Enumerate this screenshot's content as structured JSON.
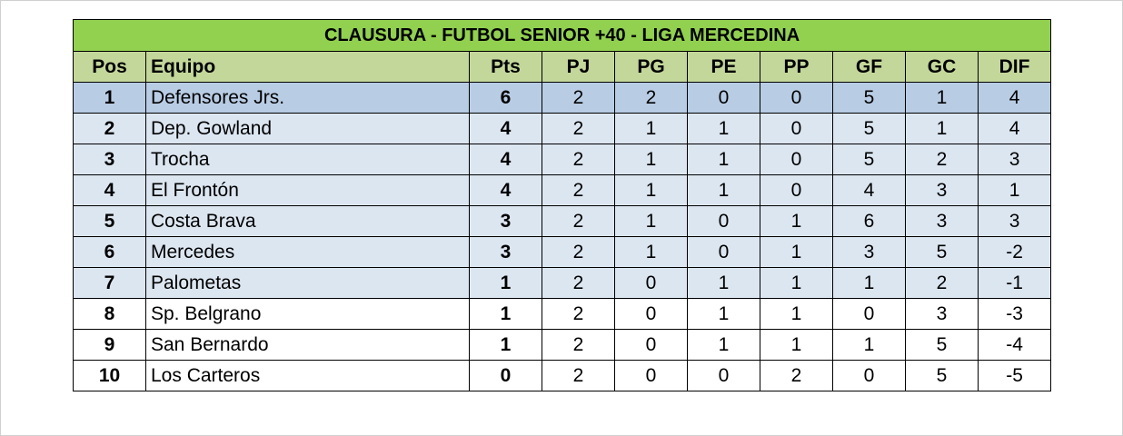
{
  "title": "CLAUSURA - FUTBOL SENIOR +40 - LIGA MERCEDINA",
  "headers": [
    "Pos",
    "Equipo",
    "Pts",
    "PJ",
    "PG",
    "PE",
    "PP",
    "GF",
    "GC",
    "DIF"
  ],
  "colors": {
    "title_bg": "#92d050",
    "header_bg": "#c4d79b",
    "leader_bg": "#b8cce4",
    "band_bg": "#dce6f1"
  },
  "rows": [
    [
      "1",
      "Defensores Jrs.",
      "6",
      "2",
      "2",
      "0",
      "0",
      "5",
      "1",
      "4"
    ],
    [
      "2",
      "Dep. Gowland",
      "4",
      "2",
      "1",
      "1",
      "0",
      "5",
      "1",
      "4"
    ],
    [
      "3",
      "Trocha",
      "4",
      "2",
      "1",
      "1",
      "0",
      "5",
      "2",
      "3"
    ],
    [
      "4",
      "El Frontón",
      "4",
      "2",
      "1",
      "1",
      "0",
      "4",
      "3",
      "1"
    ],
    [
      "5",
      "Costa Brava",
      "3",
      "2",
      "1",
      "0",
      "1",
      "6",
      "3",
      "3"
    ],
    [
      "6",
      "Mercedes",
      "3",
      "2",
      "1",
      "0",
      "1",
      "3",
      "5",
      "-2"
    ],
    [
      "7",
      "Palometas",
      "1",
      "2",
      "0",
      "1",
      "1",
      "1",
      "2",
      "-1"
    ],
    [
      "8",
      "Sp. Belgrano",
      "1",
      "2",
      "0",
      "1",
      "1",
      "0",
      "3",
      "-3"
    ],
    [
      "9",
      "San Bernardo",
      "1",
      "2",
      "0",
      "1",
      "1",
      "1",
      "5",
      "-4"
    ],
    [
      "10",
      "Los Carteros",
      "0",
      "2",
      "0",
      "0",
      "2",
      "0",
      "5",
      "-5"
    ]
  ]
}
